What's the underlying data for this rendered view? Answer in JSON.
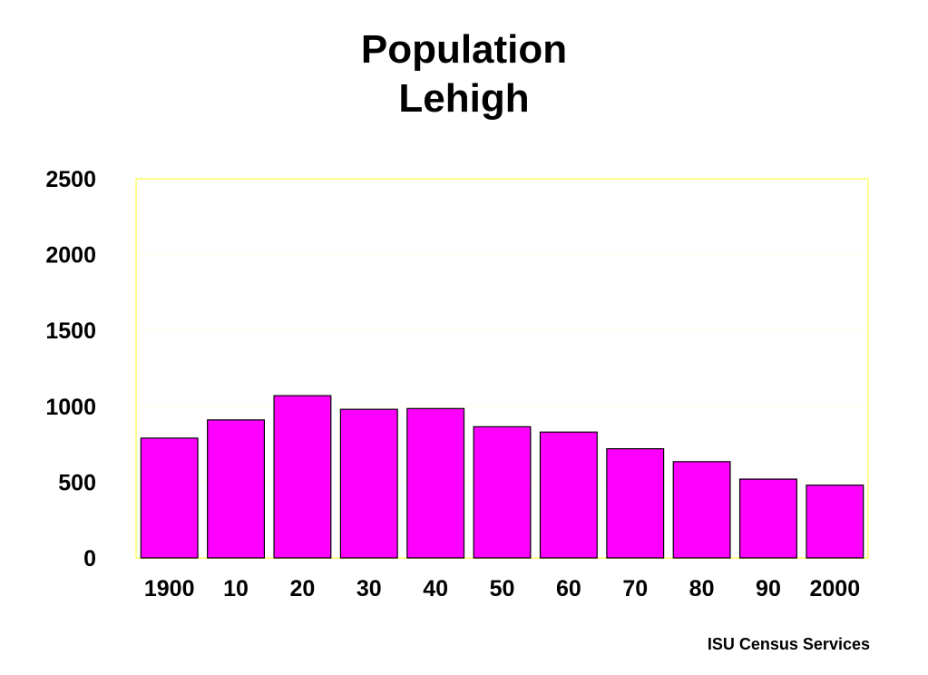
{
  "chart_data": {
    "type": "bar",
    "title": [
      "Population",
      "Lehigh"
    ],
    "categories": [
      "1900",
      "10",
      "20",
      "30",
      "40",
      "50",
      "60",
      "70",
      "80",
      "90",
      "2000"
    ],
    "values": [
      790,
      910,
      1070,
      980,
      985,
      865,
      830,
      720,
      635,
      520,
      480
    ],
    "xlabel": "",
    "ylabel": "",
    "ylim": [
      0,
      2500
    ],
    "yticks": [
      0,
      500,
      1000,
      1500,
      2000,
      2500
    ],
    "grid": false,
    "legend": "none",
    "colors": {
      "bar_fill": "#ff00ff",
      "bar_stroke": "#000000",
      "plot_border": "#ffff66",
      "gridline": "#fffde8"
    }
  },
  "footer": {
    "credit": "ISU Census Services"
  }
}
